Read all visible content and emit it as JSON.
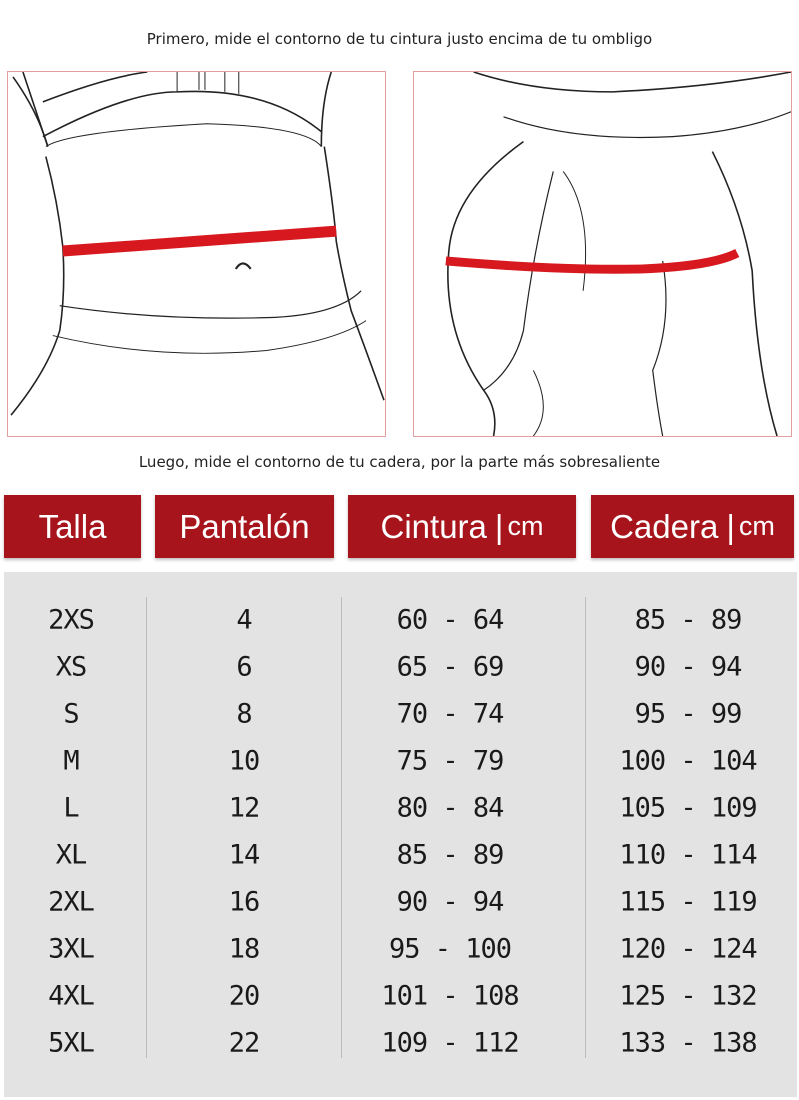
{
  "instructions": {
    "top": "Primero, mide el contorno de tu cintura justo encima de tu ombligo",
    "bottom": "Luego, mide el contorno de tu cadera, por la parte más sobresaliente"
  },
  "illustrations": {
    "waist": "waist-measurement-illustration",
    "hip": "hip-measurement-illustration",
    "tape_color": "#d7191f"
  },
  "table": {
    "header_color": "#a8141b",
    "body_color": "#e3e3e3",
    "headers": [
      {
        "label": "Talla",
        "unit": ""
      },
      {
        "label": "Pantalón",
        "unit": ""
      },
      {
        "label": "Cintura",
        "unit": "cm"
      },
      {
        "label": "Cadera",
        "unit": "cm"
      }
    ],
    "rows": [
      [
        "2XS",
        "4",
        "60 - 64",
        "85 - 89"
      ],
      [
        "XS",
        "6",
        "65 - 69",
        "90 - 94"
      ],
      [
        "S",
        "8",
        "70 - 74",
        "95 - 99"
      ],
      [
        "M",
        "10",
        "75 - 79",
        "100 - 104"
      ],
      [
        "L",
        "12",
        "80 - 84",
        "105 - 109"
      ],
      [
        "XL",
        "14",
        "85 - 89",
        "110 - 114"
      ],
      [
        "2XL",
        "16",
        "90 - 94",
        "115 - 119"
      ],
      [
        "3XL",
        "18",
        "95 - 100",
        "120 - 124"
      ],
      [
        "4XL",
        "20",
        "101 - 108",
        "125 - 132"
      ],
      [
        "5XL",
        "22",
        "109 - 112",
        "133 - 138"
      ]
    ]
  }
}
